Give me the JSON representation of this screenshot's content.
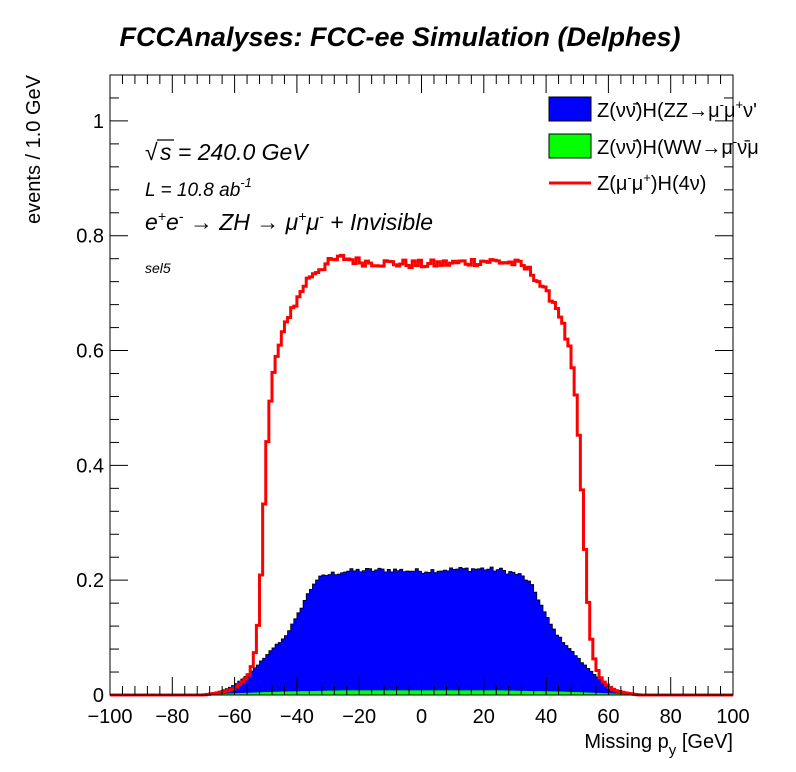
{
  "title": "FCCAnalyses: FCC-ee Simulation (Delphes)",
  "annotations": {
    "sqrt_s": "s = 240.0 GeV",
    "sqrt_symbol": "√",
    "lumi_prefix": "L = 10.8 ab",
    "lumi_exp": "-1",
    "process": "e+e- → ZH → μ+μ- + Invisible",
    "selection": "sel5"
  },
  "chart_data": {
    "type": "area",
    "title": "FCCAnalyses: FCC-ee Simulation (Delphes)",
    "xlabel": "Missing p_y [GeV]",
    "ylabel": "events / 1.0 GeV",
    "xlim": [
      -100,
      100
    ],
    "ylim": [
      0,
      1.08
    ],
    "x_ticks": [
      "−100",
      "−80",
      "−60",
      "−40",
      "−20",
      "0",
      "20",
      "40",
      "60",
      "80",
      "100"
    ],
    "y_ticks": [
      "0",
      "0.2",
      "0.4",
      "0.6",
      "0.8",
      "1"
    ],
    "bin_width": 1.0,
    "legend_position": "top-right",
    "grid": false,
    "series": [
      {
        "name": "Z(νν̄)H(ZZ→μ-μ+ν'",
        "style": "filled-stacked",
        "color": "#0000ff",
        "shape_points": [
          [
            -70,
            0
          ],
          [
            -68,
            0.002
          ],
          [
            -66,
            0.004
          ],
          [
            -64,
            0.008
          ],
          [
            -62,
            0.012
          ],
          [
            -60,
            0.018
          ],
          [
            -58,
            0.026
          ],
          [
            -56,
            0.034
          ],
          [
            -54,
            0.044
          ],
          [
            -52,
            0.056
          ],
          [
            -50,
            0.066
          ],
          [
            -48,
            0.08
          ],
          [
            -46,
            0.09
          ],
          [
            -44,
            0.1
          ],
          [
            -42,
            0.118
          ],
          [
            -40,
            0.135
          ],
          [
            -38,
            0.16
          ],
          [
            -36,
            0.18
          ],
          [
            -34,
            0.2
          ],
          [
            -32,
            0.205
          ],
          [
            -30,
            0.21
          ],
          [
            -25,
            0.215
          ],
          [
            -20,
            0.217
          ],
          [
            -10,
            0.218
          ],
          [
            0,
            0.216
          ],
          [
            10,
            0.219
          ],
          [
            20,
            0.22
          ],
          [
            25,
            0.218
          ],
          [
            30,
            0.212
          ],
          [
            32,
            0.208
          ],
          [
            34,
            0.2
          ],
          [
            36,
            0.185
          ],
          [
            38,
            0.162
          ],
          [
            40,
            0.138
          ],
          [
            42,
            0.118
          ],
          [
            44,
            0.102
          ],
          [
            46,
            0.09
          ],
          [
            48,
            0.078
          ],
          [
            50,
            0.066
          ],
          [
            52,
            0.054
          ],
          [
            54,
            0.044
          ],
          [
            56,
            0.034
          ],
          [
            58,
            0.025
          ],
          [
            60,
            0.016
          ],
          [
            62,
            0.01
          ],
          [
            64,
            0.006
          ],
          [
            66,
            0.003
          ],
          [
            68,
            0.001
          ],
          [
            70,
            0
          ]
        ]
      },
      {
        "name": "Z(νν̄)H(WW→μ-ν̄μ",
        "style": "filled",
        "color": "#00ff00",
        "shape_points": [
          [
            -70,
            0
          ],
          [
            -64,
            0.002
          ],
          [
            -55,
            0.004
          ],
          [
            -45,
            0.006
          ],
          [
            -35,
            0.007
          ],
          [
            -25,
            0.008
          ],
          [
            0,
            0.008
          ],
          [
            25,
            0.008
          ],
          [
            35,
            0.007
          ],
          [
            45,
            0.006
          ],
          [
            55,
            0.004
          ],
          [
            64,
            0.002
          ],
          [
            70,
            0
          ]
        ]
      },
      {
        "name": "Z(μ-μ+)H(4ν)",
        "style": "line",
        "color": "#ff0000",
        "shape_points": [
          [
            -100,
            0
          ],
          [
            -70,
            0
          ],
          [
            -66,
            0.003
          ],
          [
            -62,
            0.008
          ],
          [
            -60,
            0.012
          ],
          [
            -58,
            0.02
          ],
          [
            -56,
            0.03
          ],
          [
            -55,
            0.04
          ],
          [
            -54,
            0.058
          ],
          [
            -53,
            0.09
          ],
          [
            -52,
            0.155
          ],
          [
            -51,
            0.265
          ],
          [
            -50,
            0.4
          ],
          [
            -49,
            0.48
          ],
          [
            -48,
            0.54
          ],
          [
            -47,
            0.58
          ],
          [
            -46,
            0.6
          ],
          [
            -45,
            0.615
          ],
          [
            -44,
            0.64
          ],
          [
            -43,
            0.655
          ],
          [
            -42,
            0.67
          ],
          [
            -40,
            0.685
          ],
          [
            -38,
            0.71
          ],
          [
            -36,
            0.728
          ],
          [
            -34,
            0.738
          ],
          [
            -32,
            0.745
          ],
          [
            -30,
            0.752
          ],
          [
            -28,
            0.757
          ],
          [
            -25,
            0.762
          ],
          [
            -20,
            0.755
          ],
          [
            -10,
            0.752
          ],
          [
            0,
            0.75
          ],
          [
            10,
            0.752
          ],
          [
            20,
            0.756
          ],
          [
            25,
            0.755
          ],
          [
            30,
            0.752
          ],
          [
            32,
            0.748
          ],
          [
            34,
            0.742
          ],
          [
            36,
            0.732
          ],
          [
            38,
            0.718
          ],
          [
            40,
            0.7
          ],
          [
            42,
            0.69
          ],
          [
            44,
            0.67
          ],
          [
            45,
            0.655
          ],
          [
            46,
            0.63
          ],
          [
            47,
            0.615
          ],
          [
            48,
            0.59
          ],
          [
            49,
            0.545
          ],
          [
            50,
            0.49
          ],
          [
            51,
            0.41
          ],
          [
            52,
            0.305
          ],
          [
            53,
            0.2
          ],
          [
            54,
            0.12
          ],
          [
            55,
            0.075
          ],
          [
            56,
            0.05
          ],
          [
            57,
            0.035
          ],
          [
            58,
            0.025
          ],
          [
            60,
            0.015
          ],
          [
            62,
            0.008
          ],
          [
            66,
            0.003
          ],
          [
            70,
            0
          ],
          [
            100,
            0
          ]
        ]
      }
    ]
  }
}
